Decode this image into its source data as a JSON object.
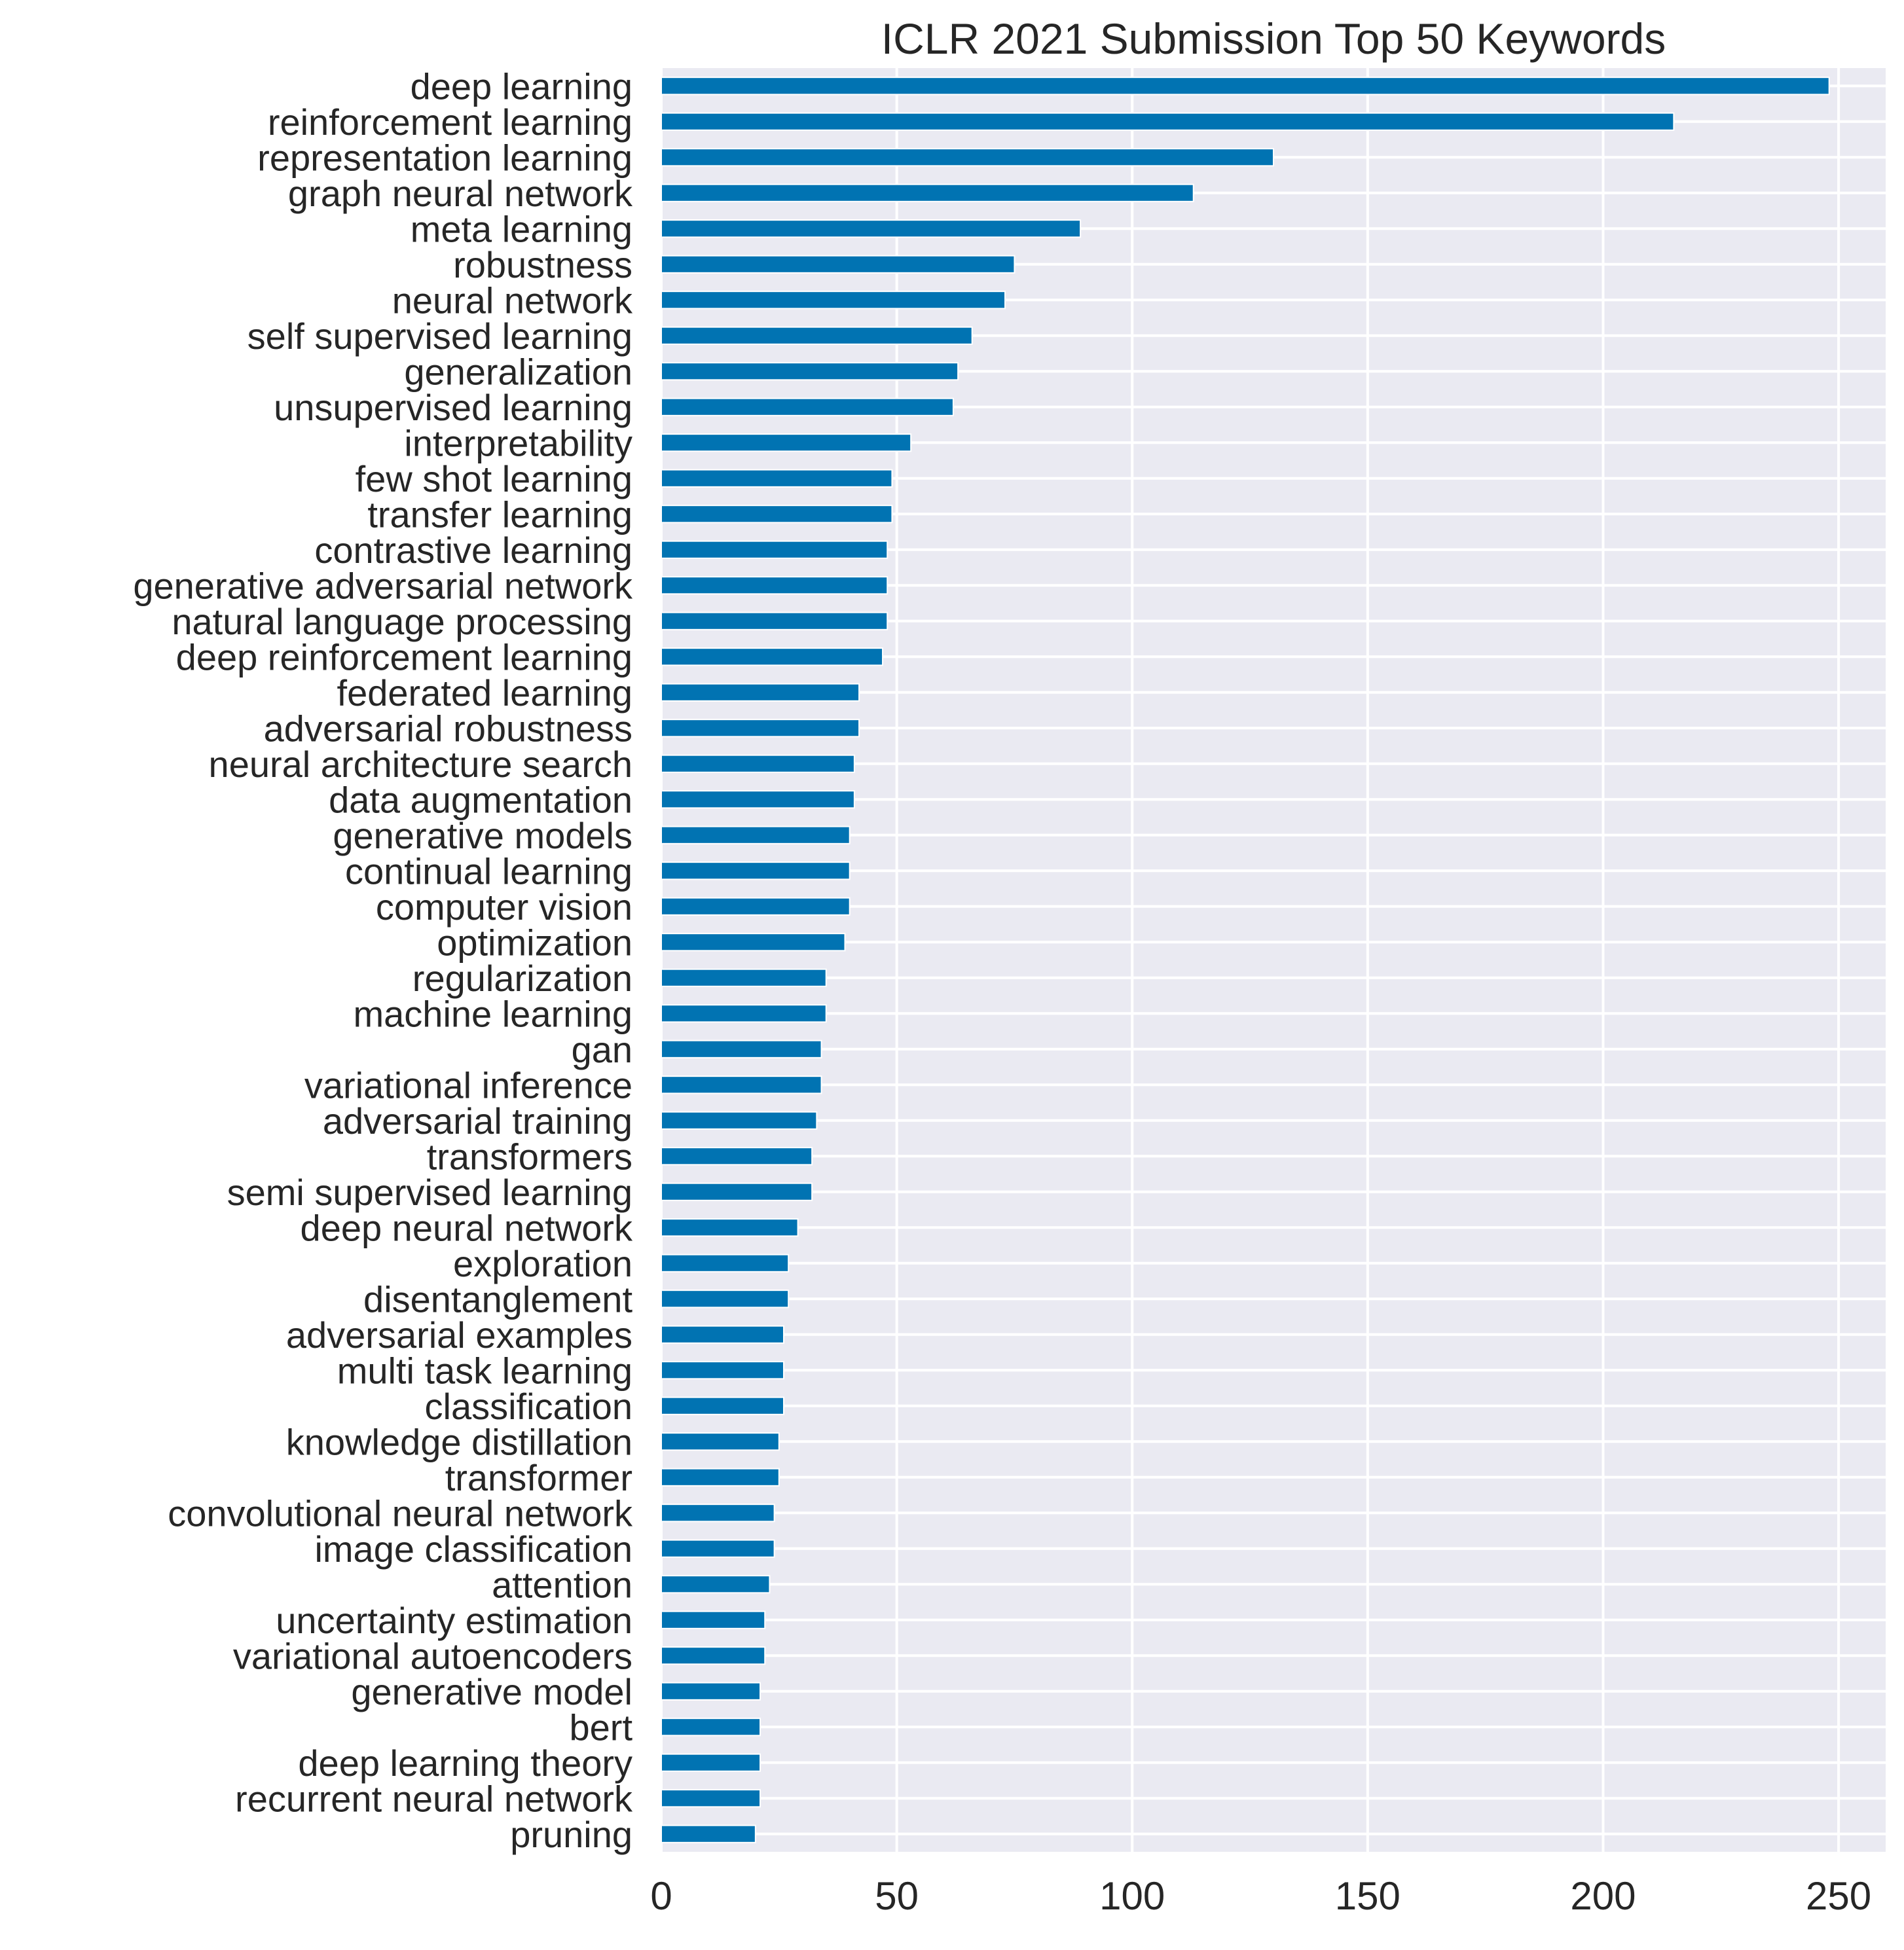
{
  "chart_data": {
    "type": "bar",
    "orientation": "horizontal",
    "title": "ICLR 2021 Submission Top 50 Keywords",
    "xlabel": "",
    "ylabel": "",
    "xlim": [
      0,
      260
    ],
    "xticks": [
      0,
      50,
      100,
      150,
      200,
      250
    ],
    "grid": true,
    "legend": "none",
    "colors": {
      "bar": "#0173b2",
      "plot_background": "#eaeaf2",
      "grid": "#ffffff",
      "text": "#262626"
    },
    "categories": [
      "deep learning",
      "reinforcement learning",
      "representation learning",
      "graph neural network",
      "meta learning",
      "robustness",
      "neural network",
      "self supervised learning",
      "generalization",
      "unsupervised learning",
      "interpretability",
      "few shot learning",
      "transfer learning",
      "contrastive learning",
      "generative adversarial network",
      "natural language processing",
      "deep reinforcement learning",
      "federated learning",
      "adversarial robustness",
      "neural architecture search",
      "data augmentation",
      "generative models",
      "continual learning",
      "computer vision",
      "optimization",
      "regularization",
      "machine learning",
      "gan",
      "variational inference",
      "adversarial training",
      "transformers",
      "semi supervised learning",
      "deep neural network",
      "exploration",
      "disentanglement",
      "adversarial examples",
      "multi task learning",
      "classification",
      "knowledge distillation",
      "transformer",
      "convolutional neural network",
      "image classification",
      "attention",
      "uncertainty estimation",
      "variational autoencoders",
      "generative model",
      "bert",
      "deep learning theory",
      "recurrent neural network",
      "pruning"
    ],
    "values": [
      248,
      215,
      130,
      113,
      89,
      75,
      73,
      66,
      63,
      62,
      53,
      49,
      49,
      48,
      48,
      48,
      47,
      42,
      42,
      41,
      41,
      40,
      40,
      40,
      39,
      35,
      35,
      34,
      34,
      33,
      32,
      32,
      29,
      27,
      27,
      26,
      26,
      26,
      25,
      25,
      24,
      24,
      23,
      22,
      22,
      21,
      21,
      21,
      21,
      20
    ]
  }
}
